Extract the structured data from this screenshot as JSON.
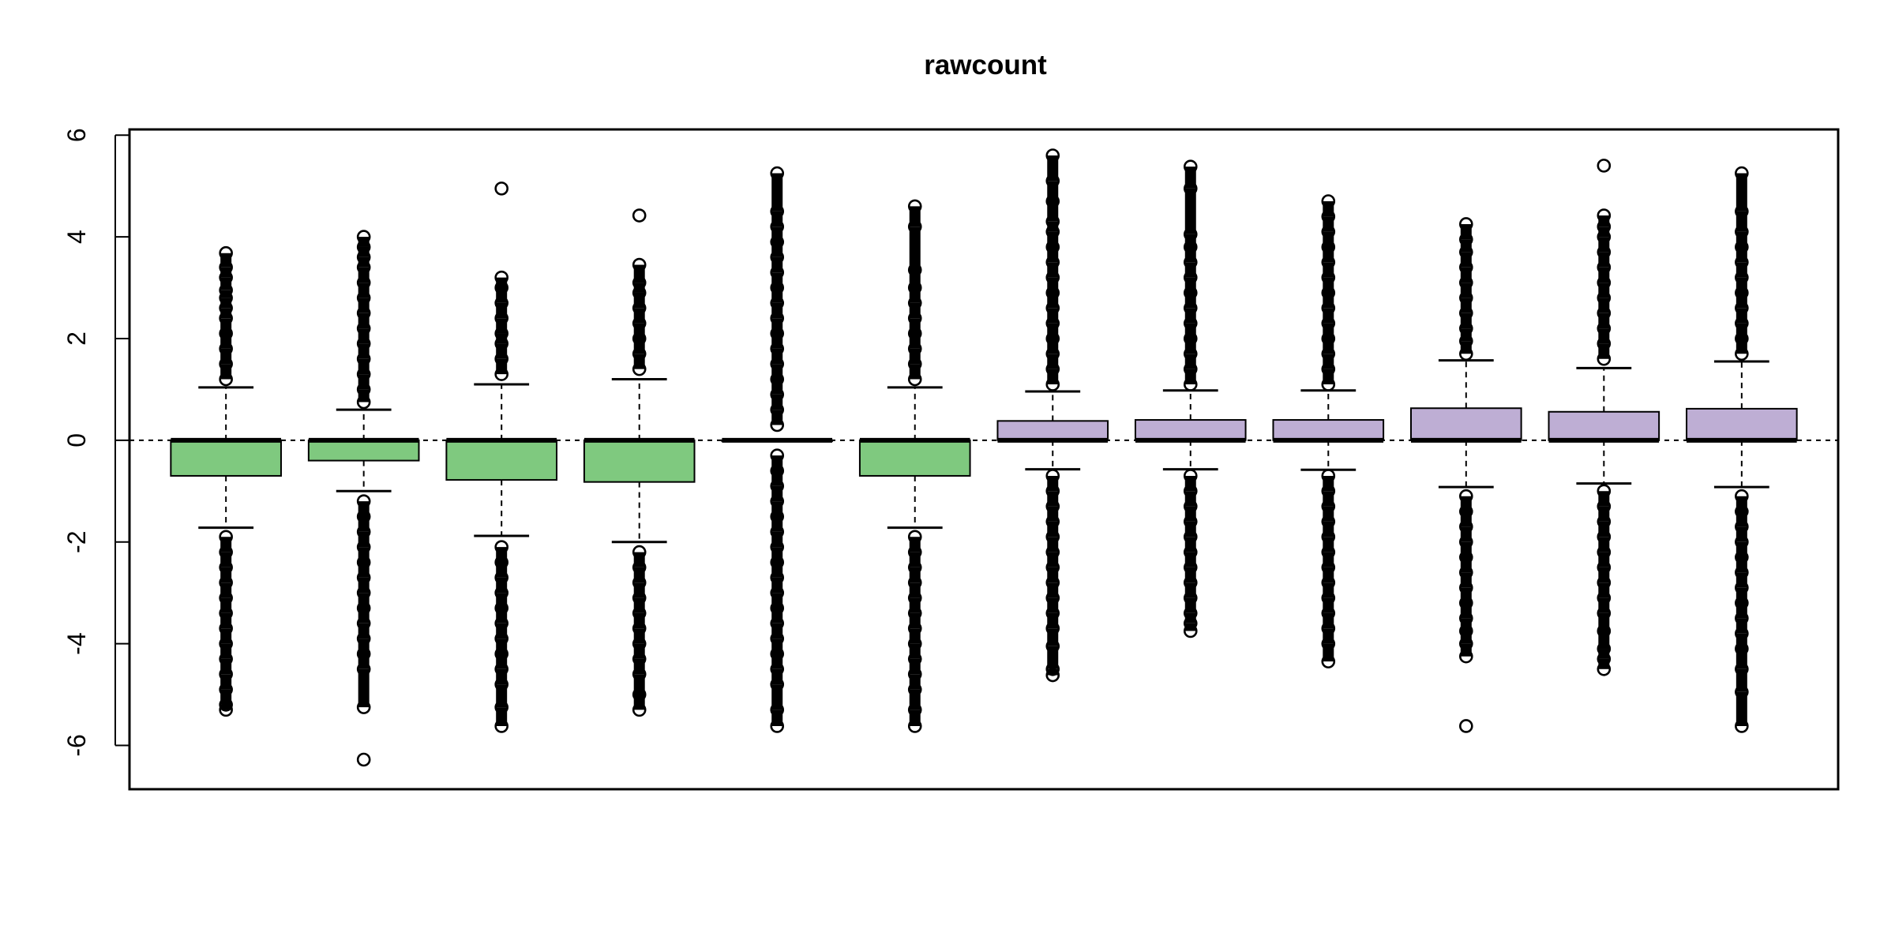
{
  "chart_data": {
    "type": "boxplot",
    "title": "rawcount",
    "xlabel": "",
    "ylabel": "",
    "ylim": [
      -6.8,
      6.05
    ],
    "yticks": [
      -6,
      -4,
      -2,
      0,
      2,
      4,
      6
    ],
    "ytick_labels": [
      "-6",
      "-4",
      "-2",
      "0",
      "2",
      "4",
      "6"
    ],
    "x_tick_labels_shown": false,
    "grid": false,
    "reference_line_y": 0,
    "group_colors": {
      "group1": "#7fc97f",
      "group2": "#beaed4"
    },
    "boxes": [
      {
        "group": "group1",
        "whisker_low": -1.72,
        "q1": -0.7,
        "median": 0.0,
        "q3": 0.0,
        "whisker_high": 1.04,
        "outliers_high": [
          1.2,
          1.5,
          1.8,
          2.1,
          2.4,
          2.6,
          2.8,
          2.95,
          3.2,
          3.4,
          3.68
        ],
        "outliers_low": [
          -1.9,
          -2.2,
          -2.5,
          -2.8,
          -3.1,
          -3.4,
          -3.7,
          -4.0,
          -4.3,
          -4.6,
          -4.9,
          -5.2,
          -5.3
        ]
      },
      {
        "group": "group1",
        "whisker_low": -1.0,
        "q1": -0.4,
        "median": 0.0,
        "q3": 0.0,
        "whisker_high": 0.6,
        "outliers_high": [
          0.75,
          1.0,
          1.3,
          1.6,
          1.9,
          2.2,
          2.5,
          2.8,
          3.1,
          3.4,
          3.6,
          3.8,
          4.0
        ],
        "outliers_low": [
          -1.2,
          -1.5,
          -1.8,
          -2.1,
          -2.4,
          -2.7,
          -3.0,
          -3.3,
          -3.6,
          -3.9,
          -4.2,
          -4.5,
          -5.25,
          -6.28
        ]
      },
      {
        "group": "group1",
        "whisker_low": -1.88,
        "q1": -0.78,
        "median": 0.0,
        "q3": 0.0,
        "whisker_high": 1.1,
        "outliers_high": [
          1.3,
          1.6,
          1.9,
          2.1,
          2.4,
          2.7,
          3.0,
          3.2,
          4.95
        ],
        "outliers_low": [
          -2.1,
          -2.4,
          -2.7,
          -3.0,
          -3.3,
          -3.6,
          -3.9,
          -4.2,
          -4.5,
          -4.8,
          -5.25,
          -5.62
        ]
      },
      {
        "group": "group1",
        "whisker_low": -2.0,
        "q1": -0.82,
        "median": 0.0,
        "q3": 0.0,
        "whisker_high": 1.2,
        "outliers_high": [
          1.4,
          1.7,
          2.0,
          2.3,
          2.6,
          2.9,
          3.1,
          3.45,
          4.42
        ],
        "outliers_low": [
          -2.2,
          -2.5,
          -2.8,
          -3.1,
          -3.4,
          -3.7,
          -4.0,
          -4.3,
          -4.6,
          -5.0,
          -5.3
        ]
      },
      {
        "group": "group1",
        "whisker_low": 0.0,
        "q1": 0.0,
        "median": 0.0,
        "q3": 0.0,
        "whisker_high": 0.0,
        "outliers_high": [
          0.3,
          0.6,
          0.9,
          1.2,
          1.5,
          1.8,
          2.1,
          2.4,
          2.7,
          3.0,
          3.3,
          3.6,
          3.9,
          4.2,
          4.5,
          5.25
        ],
        "outliers_low": [
          -0.3,
          -0.6,
          -0.9,
          -1.2,
          -1.5,
          -1.8,
          -2.1,
          -2.4,
          -2.7,
          -3.0,
          -3.3,
          -3.6,
          -3.9,
          -4.2,
          -4.5,
          -4.8,
          -5.3,
          -5.62
        ]
      },
      {
        "group": "group1",
        "whisker_low": -1.72,
        "q1": -0.7,
        "median": 0.0,
        "q3": 0.0,
        "whisker_high": 1.04,
        "outliers_high": [
          1.2,
          1.5,
          1.8,
          2.1,
          2.4,
          2.7,
          3.0,
          3.35,
          4.2,
          4.6
        ],
        "outliers_low": [
          -1.9,
          -2.2,
          -2.5,
          -2.8,
          -3.1,
          -3.4,
          -3.7,
          -4.0,
          -4.3,
          -4.6,
          -4.9,
          -5.3,
          -5.62
        ]
      },
      {
        "group": "group2",
        "whisker_low": -0.57,
        "q1": 0.0,
        "median": 0.0,
        "q3": 0.38,
        "whisker_high": 0.96,
        "outliers_high": [
          1.1,
          1.4,
          1.7,
          2.0,
          2.3,
          2.6,
          2.9,
          3.2,
          3.5,
          3.8,
          4.1,
          4.3,
          4.7,
          5.1,
          5.6
        ],
        "outliers_low": [
          -0.7,
          -1.0,
          -1.3,
          -1.6,
          -1.9,
          -2.2,
          -2.5,
          -2.8,
          -3.1,
          -3.4,
          -3.7,
          -4.05,
          -4.5,
          -4.62
        ]
      },
      {
        "group": "group2",
        "whisker_low": -0.57,
        "q1": 0.0,
        "median": 0.0,
        "q3": 0.4,
        "whisker_high": 0.98,
        "outliers_high": [
          1.1,
          1.4,
          1.7,
          2.0,
          2.3,
          2.6,
          2.9,
          3.2,
          3.5,
          3.8,
          4.05,
          4.95,
          5.38
        ],
        "outliers_low": [
          -0.7,
          -1.0,
          -1.3,
          -1.6,
          -1.9,
          -2.2,
          -2.5,
          -2.8,
          -3.1,
          -3.4,
          -3.6,
          -3.75
        ]
      },
      {
        "group": "group2",
        "whisker_low": -0.58,
        "q1": 0.0,
        "median": 0.0,
        "q3": 0.4,
        "whisker_high": 0.98,
        "outliers_high": [
          1.1,
          1.4,
          1.7,
          2.0,
          2.3,
          2.6,
          2.9,
          3.2,
          3.5,
          3.8,
          4.1,
          4.4,
          4.7
        ],
        "outliers_low": [
          -0.7,
          -1.0,
          -1.3,
          -1.6,
          -1.9,
          -2.2,
          -2.5,
          -2.8,
          -3.1,
          -3.4,
          -3.7,
          -4.0,
          -4.35
        ]
      },
      {
        "group": "group2",
        "whisker_low": -0.92,
        "q1": 0.0,
        "median": 0.0,
        "q3": 0.63,
        "whisker_high": 1.57,
        "outliers_high": [
          1.7,
          1.95,
          2.2,
          2.5,
          2.8,
          3.1,
          3.4,
          3.7,
          3.95,
          4.25
        ],
        "outliers_low": [
          -1.1,
          -1.4,
          -1.7,
          -2.0,
          -2.3,
          -2.6,
          -2.9,
          -3.2,
          -3.5,
          -3.75,
          -4.0,
          -4.25,
          -5.62
        ]
      },
      {
        "group": "group2",
        "whisker_low": -0.85,
        "q1": 0.0,
        "median": 0.0,
        "q3": 0.56,
        "whisker_high": 1.42,
        "outliers_high": [
          1.6,
          1.9,
          2.2,
          2.5,
          2.8,
          3.1,
          3.4,
          3.7,
          4.0,
          4.2,
          4.42,
          5.4
        ],
        "outliers_low": [
          -1.0,
          -1.3,
          -1.6,
          -1.9,
          -2.2,
          -2.5,
          -2.8,
          -3.1,
          -3.4,
          -3.75,
          -4.1,
          -4.3,
          -4.5
        ]
      },
      {
        "group": "group2",
        "whisker_low": -0.92,
        "q1": 0.0,
        "median": 0.0,
        "q3": 0.62,
        "whisker_high": 1.55,
        "outliers_high": [
          1.7,
          2.0,
          2.3,
          2.6,
          2.9,
          3.2,
          3.5,
          3.8,
          4.1,
          4.5,
          5.25
        ],
        "outliers_low": [
          -1.1,
          -1.4,
          -1.7,
          -2.0,
          -2.3,
          -2.6,
          -2.9,
          -3.2,
          -3.5,
          -3.8,
          -4.1,
          -4.5,
          -4.95,
          -5.62
        ]
      }
    ]
  }
}
